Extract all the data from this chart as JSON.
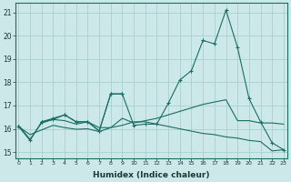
{
  "xlabel": "Humidex (Indice chaleur)",
  "bg_color": "#cce8e8",
  "line_color": "#1a6e64",
  "grid_color": "#aacfcf",
  "xmin": -0.3,
  "xmax": 23.3,
  "ymin": 14.75,
  "ymax": 21.4,
  "yticks": [
    15,
    16,
    17,
    18,
    19,
    20,
    21
  ],
  "xticks": [
    0,
    1,
    2,
    3,
    4,
    5,
    6,
    7,
    8,
    9,
    10,
    11,
    12,
    13,
    14,
    15,
    16,
    17,
    18,
    19,
    20,
    21,
    22,
    23
  ],
  "line1_x": [
    0,
    1,
    2,
    3,
    4,
    5,
    6,
    7,
    8,
    9,
    10,
    11,
    12,
    13,
    14,
    15,
    16,
    17,
    18,
    19,
    20,
    21,
    22,
    23
  ],
  "line1_y": [
    16.1,
    15.5,
    16.3,
    16.4,
    16.6,
    16.3,
    16.3,
    15.9,
    17.5,
    17.5,
    16.15,
    16.2,
    16.2,
    17.1,
    18.1,
    18.5,
    19.8,
    19.65,
    21.1,
    19.5,
    17.3,
    16.3,
    15.4,
    15.1
  ],
  "line2_x": [
    0,
    1,
    2,
    3,
    4,
    5,
    6,
    7,
    8,
    9,
    10,
    11,
    12,
    13,
    14,
    15,
    16,
    17,
    18,
    19,
    20,
    21,
    22,
    23
  ],
  "line2_y": [
    16.15,
    15.55,
    16.25,
    16.4,
    16.35,
    16.2,
    16.3,
    16.05,
    16.05,
    16.45,
    16.25,
    16.35,
    16.45,
    16.6,
    16.75,
    16.9,
    17.05,
    17.15,
    17.25,
    16.35,
    16.35,
    16.25,
    16.25,
    16.2
  ],
  "line3_x": [
    0,
    1,
    2,
    3,
    4,
    5,
    6,
    7,
    8,
    9,
    10,
    11,
    12,
    13,
    14,
    15,
    16,
    17,
    18,
    19,
    20,
    21,
    22,
    23
  ],
  "line3_y": [
    16.1,
    15.75,
    15.95,
    16.15,
    16.05,
    15.98,
    16.0,
    15.88,
    16.05,
    16.15,
    16.3,
    16.3,
    16.2,
    16.1,
    16.0,
    15.9,
    15.8,
    15.75,
    15.65,
    15.6,
    15.5,
    15.45,
    15.05,
    15.1
  ],
  "line4_x": [
    2,
    3,
    4,
    5,
    6,
    7,
    8,
    9
  ],
  "line4_y": [
    16.3,
    16.45,
    16.6,
    16.3,
    16.3,
    15.92,
    17.5,
    17.5
  ]
}
